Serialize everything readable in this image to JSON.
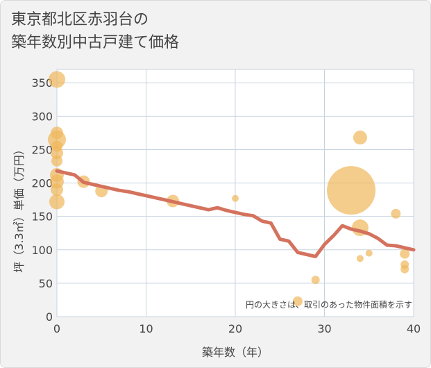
{
  "chart_data": {
    "type": "scatter",
    "title_line1": "東京都北区赤羽台の",
    "title_line2": "築年数別中古戸建て価格",
    "xlabel": "築年数（年）",
    "ylabel": "坪（3.3㎡）単価（万円）",
    "note": "円の大きさは、取引のあった物件面積を示す",
    "xlim": [
      0,
      40
    ],
    "ylim": [
      0,
      370
    ],
    "xticks": [
      "0",
      "10",
      "20",
      "30",
      "40"
    ],
    "yticks": [
      "0",
      "50",
      "100",
      "150",
      "200",
      "250",
      "300",
      "350"
    ],
    "colors": {
      "bubble": "#f0b75a",
      "line": "#d4725e",
      "plot_bg": "#ffffff",
      "grid": "#c8d3e0"
    },
    "points": [
      {
        "x": 0,
        "y": 355,
        "size": 12
      },
      {
        "x": 0,
        "y": 275,
        "size": 9
      },
      {
        "x": 0,
        "y": 265,
        "size": 13
      },
      {
        "x": 0,
        "y": 255,
        "size": 8
      },
      {
        "x": 0,
        "y": 245,
        "size": 9
      },
      {
        "x": 0,
        "y": 233,
        "size": 8
      },
      {
        "x": 0,
        "y": 212,
        "size": 10
      },
      {
        "x": 0,
        "y": 202,
        "size": 10
      },
      {
        "x": 0,
        "y": 190,
        "size": 9
      },
      {
        "x": 0,
        "y": 172,
        "size": 11
      },
      {
        "x": 3,
        "y": 202,
        "size": 9
      },
      {
        "x": 5,
        "y": 188,
        "size": 9
      },
      {
        "x": 13,
        "y": 173,
        "size": 9
      },
      {
        "x": 20,
        "y": 177,
        "size": 5
      },
      {
        "x": 27,
        "y": 23,
        "size": 7
      },
      {
        "x": 29,
        "y": 55,
        "size": 6
      },
      {
        "x": 33,
        "y": 189,
        "size": 35
      },
      {
        "x": 34,
        "y": 268,
        "size": 10
      },
      {
        "x": 34,
        "y": 133,
        "size": 12
      },
      {
        "x": 34,
        "y": 87,
        "size": 5
      },
      {
        "x": 35,
        "y": 95,
        "size": 5
      },
      {
        "x": 38,
        "y": 154,
        "size": 7
      },
      {
        "x": 39,
        "y": 94,
        "size": 7
      },
      {
        "x": 39,
        "y": 78,
        "size": 6
      },
      {
        "x": 39,
        "y": 71,
        "size": 6
      }
    ],
    "trend": {
      "name": "trend",
      "x": [
        0,
        1,
        2,
        3,
        4,
        5,
        6,
        7,
        8,
        9,
        10,
        11,
        12,
        13,
        14,
        15,
        16,
        17,
        18,
        19,
        20,
        21,
        22,
        23,
        24,
        25,
        26,
        27,
        28,
        29,
        30,
        31,
        32,
        33,
        34,
        35,
        36,
        37,
        38,
        39,
        40
      ],
      "y": [
        218,
        215,
        212,
        201,
        198,
        195,
        192,
        189,
        187,
        184,
        181,
        178,
        175,
        172,
        169,
        166,
        163,
        160,
        163,
        159,
        156,
        153,
        151,
        143,
        140,
        116,
        113,
        96,
        93,
        90,
        108,
        121,
        136,
        131,
        128,
        124,
        117,
        107,
        106,
        103,
        100
      ]
    }
  }
}
